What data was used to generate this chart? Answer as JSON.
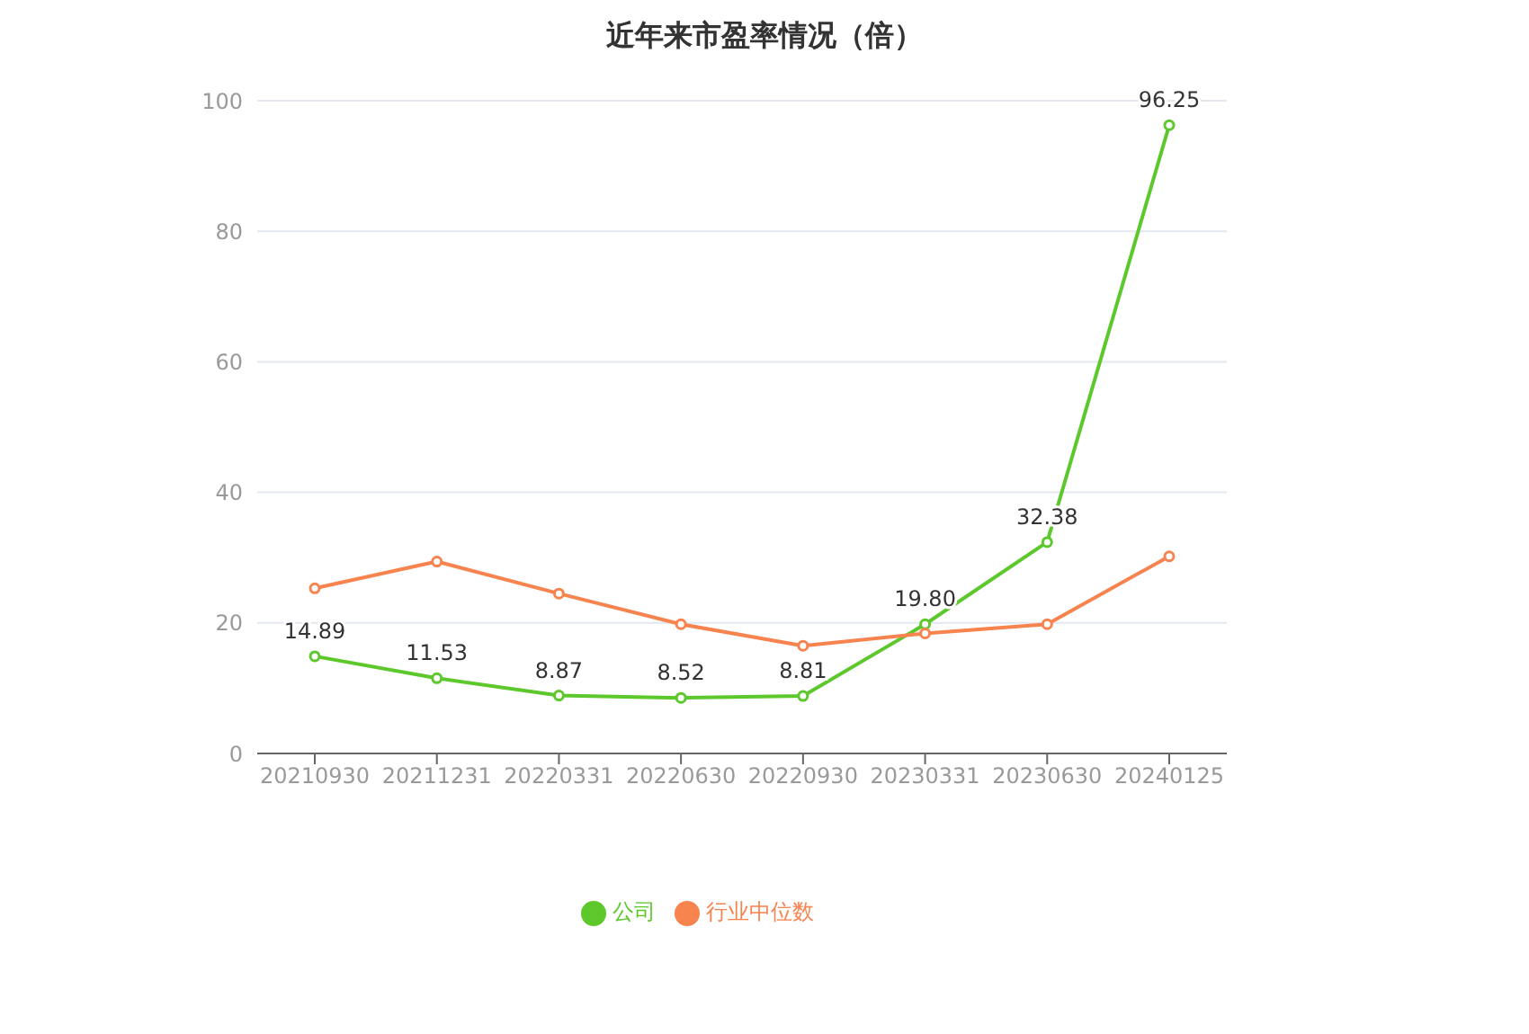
{
  "chart_data": {
    "type": "line",
    "title": "近年来市盈率情况（倍）",
    "categories": [
      "20210930",
      "20211231",
      "20220331",
      "20220630",
      "20220930",
      "20230331",
      "20230630",
      "20240125"
    ],
    "series": [
      {
        "name": "公司",
        "color": "#5cc82c",
        "values": [
          14.89,
          11.53,
          8.87,
          8.52,
          8.81,
          19.8,
          32.38,
          96.25
        ],
        "value_labels": [
          "14.89",
          "11.53",
          "8.87",
          "8.52",
          "8.81",
          "19.80",
          "32.38",
          "96.25"
        ]
      },
      {
        "name": "行业中位数",
        "color": "#f7834f",
        "values": [
          25.3,
          29.4,
          24.5,
          19.8,
          16.5,
          18.4,
          19.8,
          30.2
        ]
      }
    ],
    "ylim": [
      0,
      100
    ],
    "yticks": [
      0,
      20,
      40,
      60,
      80,
      100
    ],
    "grid": "y",
    "legend": "bottom",
    "marker": "circle",
    "line_style": "solid"
  }
}
